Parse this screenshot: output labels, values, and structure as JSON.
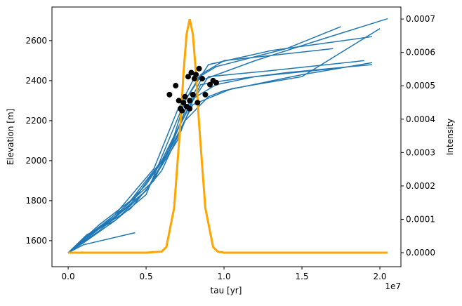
{
  "chart_data": {
    "type": "line",
    "xlabel": "tau [yr]",
    "ylabel": "Elevation [m]",
    "y2label": "Intensity",
    "x_offset_label": "1e7",
    "xlim": [
      -1040000,
      21350000
    ],
    "xticks": [
      {
        "value": 0,
        "label": "0.0"
      },
      {
        "value": 5000000,
        "label": "0.5"
      },
      {
        "value": 10000000,
        "label": "1.0"
      },
      {
        "value": 15000000,
        "label": "1.5"
      },
      {
        "value": 20000000,
        "label": "2.0"
      }
    ],
    "ylim": [
      1470,
      2768
    ],
    "yticks": [
      1600,
      1800,
      2000,
      2200,
      2400,
      2600
    ],
    "y2lim": [
      -4.2e-05,
      0.000736
    ],
    "y2ticks": [
      {
        "value": 0,
        "label": "0.0000"
      },
      {
        "value": 0.0001,
        "label": "0.0001"
      },
      {
        "value": 0.0002,
        "label": "0.0002"
      },
      {
        "value": 0.0003,
        "label": "0.0003"
      },
      {
        "value": 0.0004,
        "label": "0.0004"
      },
      {
        "value": 0.0005,
        "label": "0.0005"
      },
      {
        "value": 0.0006,
        "label": "0.0006"
      },
      {
        "value": 0.0007,
        "label": "0.0007"
      }
    ],
    "series": [
      {
        "type": "line",
        "color": "#1f77b4",
        "x": [
          0,
          1000000,
          3000000,
          5000000,
          6500000,
          7500000,
          8500000,
          12000000,
          16000000,
          20500000
        ],
        "values": [
          1540,
          1600,
          1720,
          1880,
          2050,
          2250,
          2400,
          2500,
          2600,
          2710
        ]
      },
      {
        "type": "line",
        "color": "#1f77b4",
        "x": [
          0,
          1200000,
          3000000,
          5000000,
          7000000,
          8000000,
          9000000,
          13000000,
          19000000
        ],
        "values": [
          1540,
          1630,
          1700,
          1850,
          2100,
          2300,
          2420,
          2450,
          2500
        ]
      },
      {
        "type": "line",
        "color": "#1f77b4",
        "x": [
          0,
          1000000,
          4300000
        ],
        "values": [
          1540,
          1580,
          1640
        ]
      },
      {
        "type": "line",
        "color": "#1f77b4",
        "x": [
          0,
          2000000,
          4000000,
          6000000,
          7500000,
          9000000,
          10000000,
          15000000,
          19500000
        ],
        "values": [
          1540,
          1660,
          1760,
          1950,
          2200,
          2320,
          2350,
          2430,
          2490
        ]
      },
      {
        "type": "line",
        "color": "#1f77b4",
        "x": [
          0,
          1000000,
          3000000,
          5500000,
          7000000,
          8000000,
          9500000,
          14000000,
          17500000
        ],
        "values": [
          1540,
          1600,
          1730,
          1960,
          2250,
          2400,
          2470,
          2560,
          2670
        ]
      },
      {
        "type": "line",
        "color": "#1f77b4",
        "x": [
          0,
          2000000,
          4000000,
          6000000,
          8000000,
          9500000,
          12000000,
          17000000
        ],
        "values": [
          1540,
          1650,
          1780,
          2000,
          2310,
          2380,
          2420,
          2460
        ]
      },
      {
        "type": "line",
        "color": "#1f77b4",
        "x": [
          0,
          1500000,
          3500000,
          5500000,
          7000000,
          8500000,
          10000000,
          14000000,
          19500000
        ],
        "values": [
          1540,
          1640,
          1760,
          1900,
          2150,
          2380,
          2400,
          2440,
          2480
        ]
      },
      {
        "type": "line",
        "color": "#1f77b4",
        "x": [
          0,
          1000000,
          3000000,
          5000000,
          6500000,
          7500000,
          9000000,
          13000000,
          19500000
        ],
        "values": [
          1540,
          1610,
          1720,
          1850,
          2050,
          2300,
          2480,
          2550,
          2620
        ]
      },
      {
        "type": "line",
        "color": "#1f77b4",
        "x": [
          0,
          2000000,
          4000000,
          6500000,
          8000000,
          10500000,
          15000000,
          20000000
        ],
        "values": [
          1540,
          1680,
          1800,
          2050,
          2280,
          2360,
          2420,
          2660
        ]
      },
      {
        "type": "line",
        "color": "#1f77b4",
        "x": [
          0,
          1000000,
          3000000,
          5000000,
          7500000,
          8500000,
          10000000,
          17000000
        ],
        "values": [
          1540,
          1590,
          1700,
          1830,
          2300,
          2430,
          2500,
          2560
        ]
      },
      {
        "type": "scatter",
        "color": "#000000",
        "x": [
          6500000,
          6900000,
          7100000,
          7200000,
          7300000,
          7400000,
          7500000,
          7600000,
          7700000,
          7800000,
          7800000,
          7900000,
          8000000,
          8100000,
          8200000,
          8300000,
          8400000,
          8600000,
          8800000,
          9100000,
          9300000,
          9500000
        ],
        "values": [
          2330,
          2375,
          2300,
          2260,
          2250,
          2290,
          2320,
          2270,
          2420,
          2300,
          2260,
          2440,
          2330,
          2410,
          2430,
          2290,
          2460,
          2410,
          2330,
          2380,
          2400,
          2390
        ]
      },
      {
        "type": "line",
        "axis": "y2",
        "color": "#ffa500",
        "x": [
          0,
          5000000,
          6000000,
          6300000,
          6800000,
          7200000,
          7400000,
          7600000,
          7800000,
          8000000,
          8200000,
          8400000,
          8800000,
          9300000,
          9600000,
          10000000,
          20500000
        ],
        "values": [
          0,
          0,
          3.3e-06,
          1.7e-05,
          0.000134,
          0.000386,
          0.000538,
          0.000655,
          0.0007,
          0.000655,
          0.000538,
          0.000386,
          0.000134,
          1.7e-05,
          3.3e-06,
          0,
          0
        ]
      }
    ]
  }
}
